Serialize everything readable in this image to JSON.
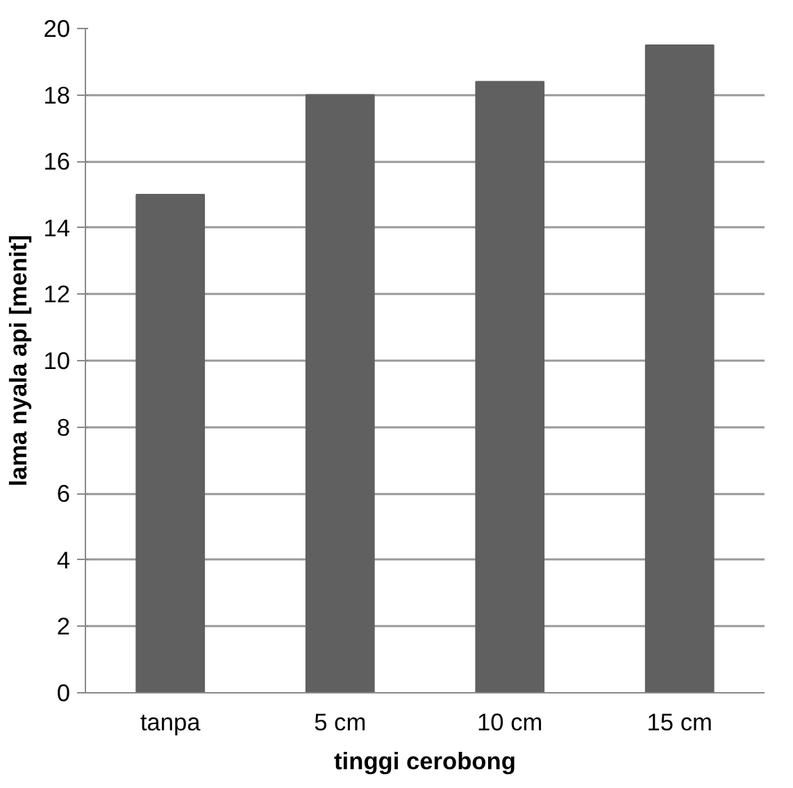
{
  "chart_data": {
    "type": "bar",
    "xlabel": "tinggi cerobong",
    "ylabel": "lama nyala api [menit]",
    "categories": [
      "tanpa",
      "5 cm",
      "10 cm",
      "15 cm"
    ],
    "values": [
      15.0,
      18.0,
      18.4,
      19.5
    ],
    "color": "#606060",
    "ylim": [
      0,
      20
    ],
    "yticks": [
      0,
      2,
      4,
      6,
      8,
      10,
      12,
      14,
      16,
      18,
      20
    ],
    "grid": "y"
  }
}
